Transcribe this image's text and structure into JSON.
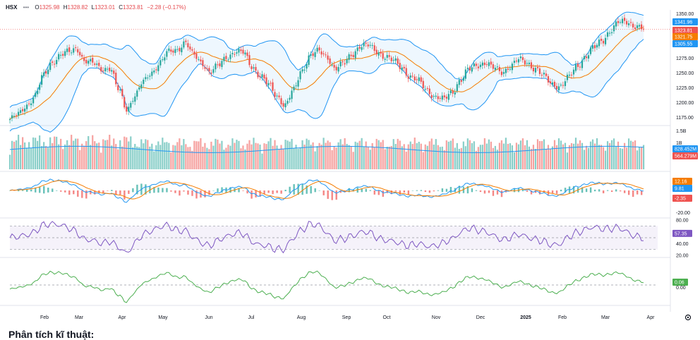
{
  "ohlc_header": {
    "symbol": "HSX",
    "open_label": "O",
    "open": "1325.98",
    "high_label": "H",
    "high": "1328.82",
    "low_label": "L",
    "low": "1323.01",
    "close_label": "C",
    "close": "1323.81",
    "change": "−2.28 (−0.17%)"
  },
  "section_heading": "Phân tích kĩ thuật:",
  "settings_icon": "gear-icon",
  "colors": {
    "up": "#26a69a",
    "down": "#ef5350",
    "band": "#2196f3",
    "ma": "#f57c00",
    "rsi": "#7e57c2",
    "osc": "#4caf50"
  },
  "chart_data": {
    "type": "candlestick",
    "x_ticks": [
      "Feb",
      "Mar",
      "Apr",
      "May",
      "Jun",
      "Jul",
      "Aug",
      "Sep",
      "Oct",
      "Nov",
      "Dec",
      "2025",
      "Feb",
      "Mar",
      "Apr"
    ],
    "price_pane": {
      "y_ticks": [
        "1350.00",
        "1325.00",
        "1300.00",
        "1275.00",
        "1250.00",
        "1225.00",
        "1200.00",
        "1175.00"
      ],
      "ylim": [
        1165,
        1352
      ],
      "overlays": [
        "bollinger_upper",
        "bollinger_lower",
        "moving_average"
      ],
      "series": [
        {
          "name": "close",
          "values": [
            1172,
            1180,
            1196,
            1212,
            1245,
            1268,
            1280,
            1285,
            1292,
            1270,
            1266,
            1258,
            1258,
            1222,
            1190,
            1212,
            1235,
            1252,
            1268,
            1285,
            1290,
            1302,
            1280,
            1268,
            1252,
            1262,
            1278,
            1286,
            1284,
            1262,
            1246,
            1230,
            1212,
            1196,
            1220,
            1255,
            1280,
            1286,
            1278,
            1258,
            1265,
            1282,
            1296,
            1296,
            1287,
            1278,
            1270,
            1260,
            1244,
            1236,
            1222,
            1210,
            1205,
            1218,
            1238,
            1255,
            1264,
            1268,
            1258,
            1252,
            1262,
            1272,
            1268,
            1258,
            1244,
            1232,
            1228,
            1242,
            1262,
            1278,
            1292,
            1305,
            1322,
            1335,
            1337,
            1330,
            1324
          ]
        }
      ],
      "markers": [
        {
          "value": 1341.96,
          "label": "1341.96",
          "color": "#2196f3"
        },
        {
          "value": 1323.81,
          "label": "1323.81",
          "color": "#ef5350"
        },
        {
          "value": 1321.75,
          "label": "1321.75",
          "color": "#f57c00"
        },
        {
          "value": 1305.55,
          "label": "1305.55",
          "color": "#2196f3"
        }
      ]
    },
    "volume_pane": {
      "y_ticks": [
        "1.5B",
        "1B"
      ],
      "markers": [
        {
          "label": "828.452M",
          "color": "#2196f3"
        },
        {
          "label": "564.279M",
          "color": "#ef5350"
        }
      ]
    },
    "macd_pane": {
      "y_ticks": [
        "-20.00"
      ],
      "markers": [
        {
          "label": "12.16",
          "color": "#f57c00"
        },
        {
          "label": "9.81",
          "color": "#2196f3"
        },
        {
          "label": "-2.35",
          "color": "#ef5350"
        }
      ]
    },
    "rsi_pane": {
      "y_ticks": [
        "80.00",
        "40.00",
        "20.00"
      ],
      "ylim": [
        20,
        80
      ],
      "bands": [
        70,
        50,
        30
      ],
      "markers": [
        {
          "value": 57.35,
          "label": "57.35",
          "color": "#7e57c2"
        }
      ]
    },
    "osc_pane": {
      "y_ticks": [
        "0.00"
      ],
      "markers": [
        {
          "label": "0.06",
          "color": "#4caf50"
        }
      ]
    }
  }
}
